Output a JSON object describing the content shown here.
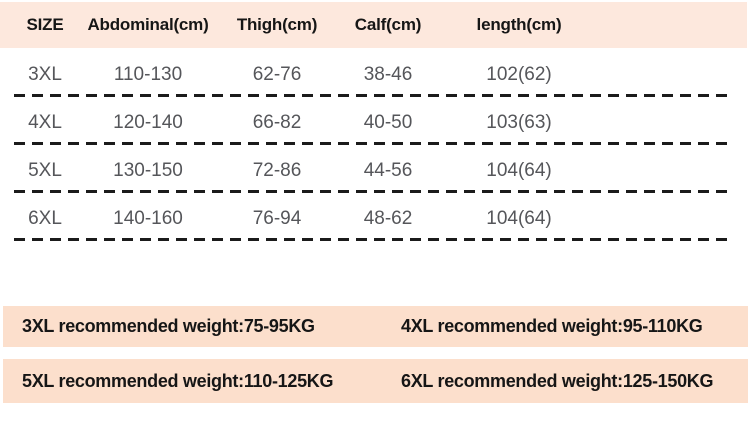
{
  "table": {
    "columns": [
      "SIZE",
      "Abdominal(cm)",
      "Thigh(cm)",
      "Calf(cm)",
      "length(cm)"
    ],
    "rows": [
      {
        "size": "3XL",
        "abdominal": "110-130",
        "thigh": "62-76",
        "calf": "38-46",
        "length": "102(62)"
      },
      {
        "size": "4XL",
        "abdominal": "120-140",
        "thigh": "66-82",
        "calf": "40-50",
        "length": "103(63)"
      },
      {
        "size": "5XL",
        "abdominal": "130-150",
        "thigh": "72-86",
        "calf": "44-56",
        "length": "104(64)"
      },
      {
        "size": "6XL",
        "abdominal": "140-160",
        "thigh": "76-94",
        "calf": "48-62",
        "length": "104(64)"
      }
    ]
  },
  "recommendations": [
    {
      "left": "3XL recommended weight:75-95KG",
      "right": "4XL recommended weight:95-110KG"
    },
    {
      "left": "5XL recommended weight:110-125KG",
      "right": "6XL recommended weight:125-150KG"
    }
  ],
  "colors": {
    "header_bg": "#fde8dd",
    "band_bg": "#fcdfcc",
    "header_text": "#161616",
    "data_text": "#55565a",
    "dash": "#1b1b1b",
    "page_bg": "#ffffff"
  }
}
